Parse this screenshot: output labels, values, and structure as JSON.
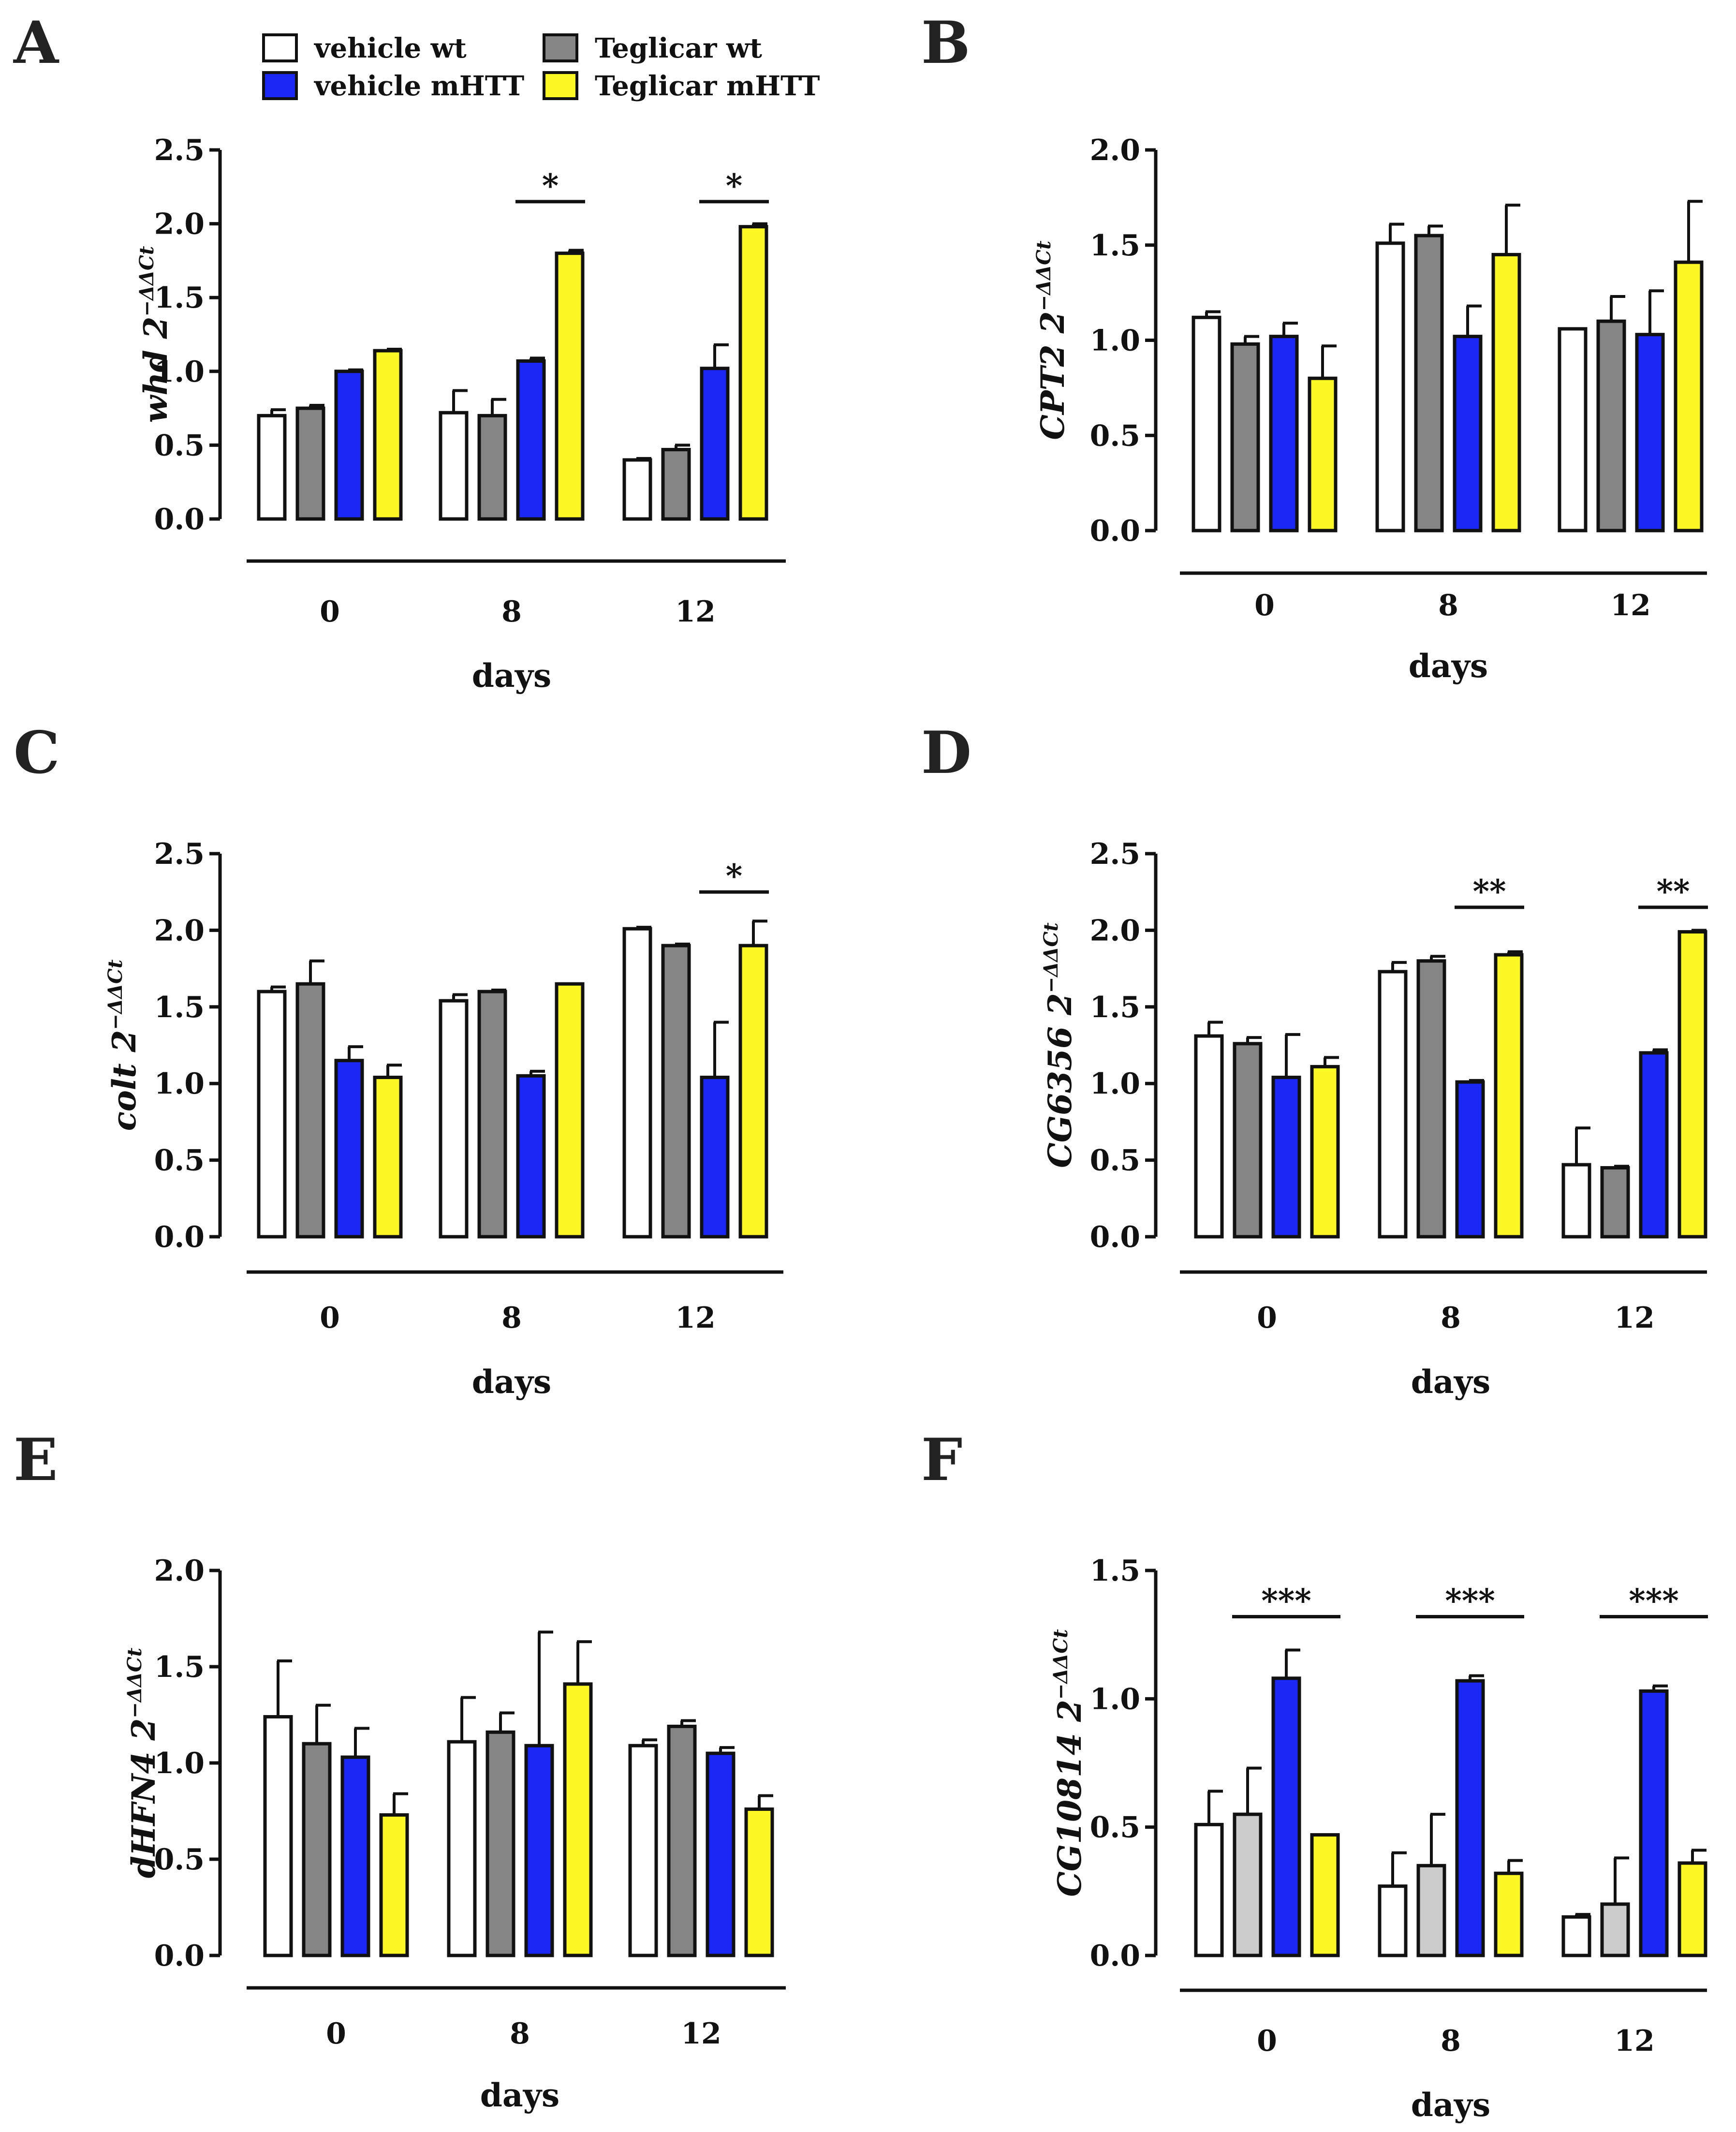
{
  "legend": {
    "items": [
      {
        "label": "vehicle wt",
        "color": "#ffffff"
      },
      {
        "label": "vehicle mHTT",
        "color": "#1b28f5"
      },
      {
        "label": "Teglicar  wt",
        "color": "#858585"
      },
      {
        "label": "Teglicar  mHTT",
        "color": "#fbf825"
      }
    ]
  },
  "chart_data": [
    {
      "panel": "A",
      "type": "bar",
      "xlabel": "days",
      "ylabel": {
        "gene": "whd",
        "main": " 2",
        "sup": "−ΔΔCt"
      },
      "categories": [
        "0",
        "8",
        "12"
      ],
      "ylim": [
        0,
        2.5
      ],
      "yticks": [
        "0.0",
        "0.5",
        "1.0",
        "1.5",
        "2.0",
        "2.5"
      ],
      "series": [
        {
          "name": "vehicle wt",
          "color": "#ffffff",
          "values": [
            0.7,
            0.72,
            0.4
          ],
          "errors": [
            0.04,
            0.15,
            0.01
          ]
        },
        {
          "name": "Teglicar wt",
          "color": "#858585",
          "values": [
            0.75,
            0.7,
            0.47
          ],
          "errors": [
            0.02,
            0.11,
            0.03
          ]
        },
        {
          "name": "vehicle mHTT",
          "color": "#1b28f5",
          "values": [
            1.0,
            1.07,
            1.02
          ],
          "errors": [
            0.01,
            0.02,
            0.16
          ]
        },
        {
          "name": "Teglicar mHTT",
          "color": "#fbf825",
          "values": [
            1.14,
            1.8,
            1.98
          ],
          "errors": [
            0.01,
            0.02,
            0.02
          ]
        }
      ],
      "significance": [
        {
          "group": 1,
          "from": 2,
          "to": 3,
          "label": "*",
          "level": 2.15
        },
        {
          "group": 2,
          "from": 2,
          "to": 3,
          "label": "*",
          "level": 2.15
        }
      ]
    },
    {
      "panel": "B",
      "type": "bar",
      "xlabel": "days",
      "ylabel": {
        "gene": "CPT2",
        "main": " 2",
        "sup": "−ΔΔCt"
      },
      "categories": [
        "0",
        "8",
        "12"
      ],
      "ylim": [
        0,
        2.0
      ],
      "yticks": [
        "0.0",
        "0.5",
        "1.0",
        "1.5",
        "2.0"
      ],
      "series": [
        {
          "name": "vehicle wt",
          "color": "#ffffff",
          "values": [
            1.12,
            1.51,
            1.06
          ],
          "errors": [
            0.03,
            0.1,
            0.0
          ]
        },
        {
          "name": "Teglicar wt",
          "color": "#858585",
          "values": [
            0.98,
            1.55,
            1.1
          ],
          "errors": [
            0.04,
            0.05,
            0.13
          ]
        },
        {
          "name": "vehicle mHTT",
          "color": "#1b28f5",
          "values": [
            1.02,
            1.02,
            1.03
          ],
          "errors": [
            0.07,
            0.16,
            0.23
          ]
        },
        {
          "name": "Teglicar mHTT",
          "color": "#fbf825",
          "values": [
            0.8,
            1.45,
            1.41
          ],
          "errors": [
            0.17,
            0.26,
            0.32
          ]
        }
      ],
      "significance": []
    },
    {
      "panel": "C",
      "type": "bar",
      "xlabel": "days",
      "ylabel": {
        "gene": "colt",
        "main": " 2",
        "sup": "−ΔΔCt"
      },
      "categories": [
        "0",
        "8",
        "12"
      ],
      "ylim": [
        0,
        2.5
      ],
      "yticks": [
        "0.0",
        "0.5",
        "1.0",
        "1.5",
        "2.0",
        "2.5"
      ],
      "series": [
        {
          "name": "vehicle wt",
          "color": "#ffffff",
          "values": [
            1.6,
            1.54,
            2.01
          ],
          "errors": [
            0.03,
            0.04,
            0.01
          ]
        },
        {
          "name": "Teglicar wt",
          "color": "#858585",
          "values": [
            1.65,
            1.6,
            1.9
          ],
          "errors": [
            0.15,
            0.01,
            0.01
          ]
        },
        {
          "name": "vehicle mHTT",
          "color": "#1b28f5",
          "values": [
            1.15,
            1.05,
            1.04
          ],
          "errors": [
            0.09,
            0.03,
            0.36
          ]
        },
        {
          "name": "Teglicar mHTT",
          "color": "#fbf825",
          "values": [
            1.04,
            1.65,
            1.9
          ],
          "errors": [
            0.08,
            0.0,
            0.16
          ]
        }
      ],
      "significance": [
        {
          "group": 2,
          "from": 2,
          "to": 3,
          "label": "*",
          "level": 2.25
        }
      ]
    },
    {
      "panel": "D",
      "type": "bar",
      "xlabel": "days",
      "ylabel": {
        "gene": "CG6356",
        "main": " 2",
        "sup": "−ΔΔCt"
      },
      "categories": [
        "0",
        "8",
        "12"
      ],
      "ylim": [
        0,
        2.5
      ],
      "yticks": [
        "0.0",
        "0.5",
        "1.0",
        "1.5",
        "2.0",
        "2.5"
      ],
      "series": [
        {
          "name": "vehicle wt",
          "color": "#ffffff",
          "values": [
            1.31,
            1.73,
            0.47
          ],
          "errors": [
            0.09,
            0.06,
            0.24
          ]
        },
        {
          "name": "Teglicar wt",
          "color": "#858585",
          "values": [
            1.26,
            1.8,
            0.45
          ],
          "errors": [
            0.04,
            0.03,
            0.01
          ]
        },
        {
          "name": "vehicle mHTT",
          "color": "#1b28f5",
          "values": [
            1.04,
            1.01,
            1.2
          ],
          "errors": [
            0.28,
            0.01,
            0.02
          ]
        },
        {
          "name": "Teglicar mHTT",
          "color": "#fbf825",
          "values": [
            1.11,
            1.84,
            1.99
          ],
          "errors": [
            0.06,
            0.02,
            0.01
          ]
        }
      ],
      "significance": [
        {
          "group": 1,
          "from": 2,
          "to": 3,
          "label": "**",
          "level": 2.15
        },
        {
          "group": 2,
          "from": 2,
          "to": 3,
          "label": "**",
          "level": 2.15
        }
      ]
    },
    {
      "panel": "E",
      "type": "bar",
      "xlabel": "days",
      "ylabel": {
        "gene": "dHFN4",
        "main": " 2",
        "sup": "−ΔΔCt"
      },
      "categories": [
        "0",
        "8",
        "12"
      ],
      "ylim": [
        0,
        2.0
      ],
      "yticks": [
        "0.0",
        "0.5",
        "1.0",
        "1.5",
        "2.0"
      ],
      "series": [
        {
          "name": "vehicle wt",
          "color": "#ffffff",
          "values": [
            1.24,
            1.11,
            1.09
          ],
          "errors": [
            0.29,
            0.23,
            0.03
          ]
        },
        {
          "name": "Teglicar wt",
          "color": "#858585",
          "values": [
            1.1,
            1.16,
            1.19
          ],
          "errors": [
            0.2,
            0.1,
            0.03
          ]
        },
        {
          "name": "vehicle mHTT",
          "color": "#1b28f5",
          "values": [
            1.03,
            1.09,
            1.05
          ],
          "errors": [
            0.15,
            0.59,
            0.03
          ]
        },
        {
          "name": "Teglicar mHTT",
          "color": "#fbf825",
          "values": [
            0.73,
            1.41,
            0.76
          ],
          "errors": [
            0.11,
            0.22,
            0.07
          ]
        }
      ],
      "significance": []
    },
    {
      "panel": "F",
      "type": "bar",
      "xlabel": "days",
      "ylabel": {
        "gene": "CG10814",
        "main": " 2",
        "sup": "−ΔΔCt"
      },
      "categories": [
        "0",
        "8",
        "12"
      ],
      "ylim": [
        0,
        1.5
      ],
      "yticks": [
        "0.0",
        "0.5",
        "1.0",
        "1.5"
      ],
      "series": [
        {
          "name": "vehicle wt",
          "color": "#ffffff",
          "values": [
            0.51,
            0.27,
            0.15
          ],
          "errors": [
            0.13,
            0.13,
            0.01
          ]
        },
        {
          "name": "Teglicar wt",
          "color": "#cccccc",
          "values": [
            0.55,
            0.35,
            0.2
          ],
          "errors": [
            0.18,
            0.2,
            0.18
          ]
        },
        {
          "name": "vehicle mHTT",
          "color": "#1b28f5",
          "values": [
            1.08,
            1.07,
            1.03
          ],
          "errors": [
            0.11,
            0.02,
            0.02
          ]
        },
        {
          "name": "Teglicar mHTT",
          "color": "#fbf825",
          "values": [
            0.47,
            0.32,
            0.36
          ],
          "errors": [
            0.0,
            0.05,
            0.05
          ]
        }
      ],
      "significance": [
        {
          "group": 0,
          "from": 1,
          "to": 3,
          "label": "***",
          "level": 1.32
        },
        {
          "group": 1,
          "from": 1,
          "to": 3,
          "label": "***",
          "level": 1.32
        },
        {
          "group": 2,
          "from": 1,
          "to": 3,
          "label": "***",
          "level": 1.32
        }
      ]
    }
  ]
}
